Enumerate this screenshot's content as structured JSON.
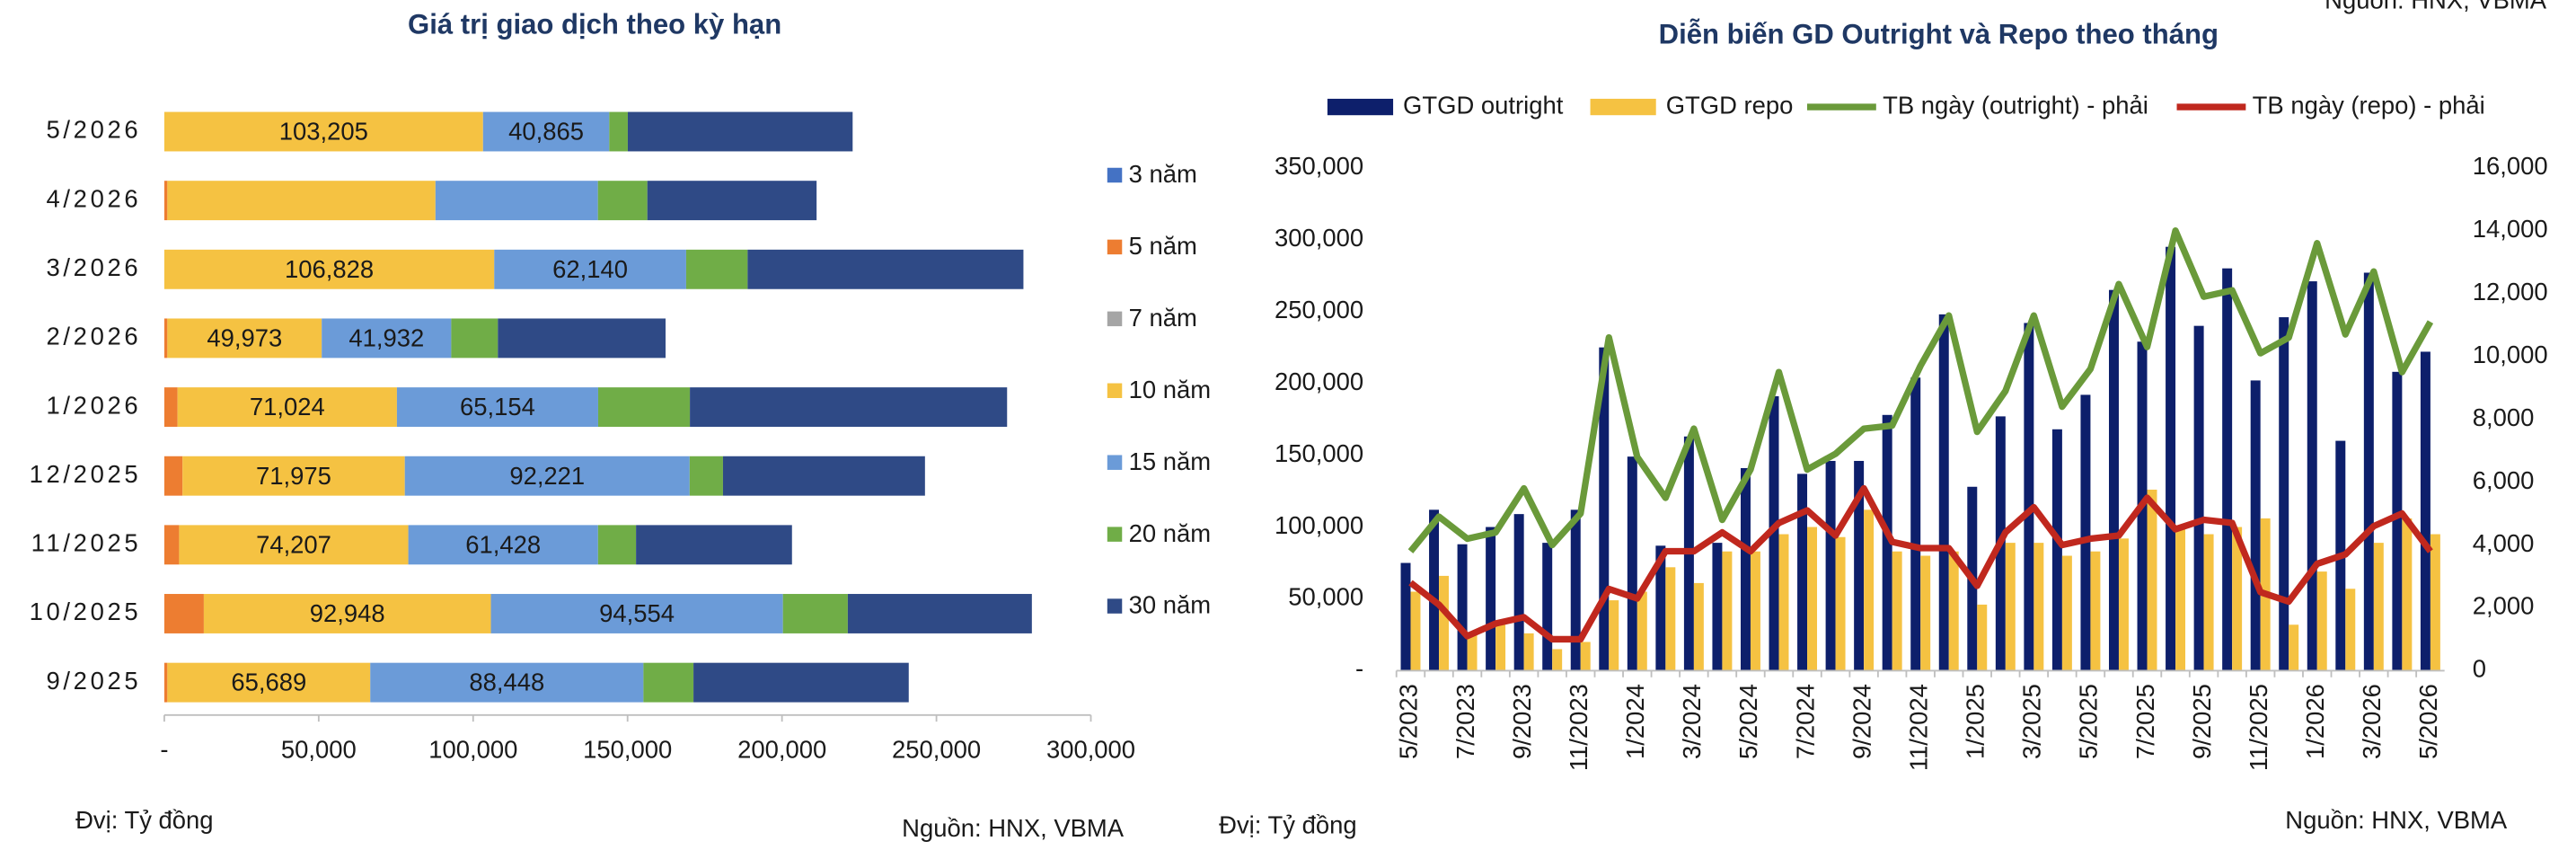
{
  "header_source": "Nguồn: HNX, VBMA",
  "chart_data": [
    {
      "type": "bar",
      "orientation": "horizontal",
      "stacked": true,
      "title": "Giá trị giao dịch theo kỳ hạn",
      "note": "Đvị: Tỷ đồng",
      "source": "Nguồn: HNX, VBMA",
      "legend": "right",
      "categories": [
        "5/2026",
        "4/2026",
        "3/2026",
        "2/2026",
        "1/2026",
        "12/2025",
        "11/2025",
        "10/2025",
        "9/2025"
      ],
      "xlim": [
        0,
        300000
      ],
      "xticks": [
        {
          "value": 0,
          "label": "-"
        },
        {
          "value": 50000,
          "label": "50,000"
        },
        {
          "value": 100000,
          "label": "100,000"
        },
        {
          "value": 150000,
          "label": "150,000"
        },
        {
          "value": 200000,
          "label": "200,000"
        },
        {
          "value": 250000,
          "label": "250,000"
        },
        {
          "value": 300000,
          "label": "300,000"
        }
      ],
      "series": [
        {
          "name": "3 năm",
          "color": "#4472c4",
          "values": [
            0,
            0,
            0,
            0,
            0,
            0,
            0,
            0,
            0
          ]
        },
        {
          "name": "5 năm",
          "color": "#ed7d31",
          "values": [
            0,
            1000,
            0,
            1000,
            4300,
            5900,
            4800,
            12800,
            1000
          ]
        },
        {
          "name": "7 năm",
          "color": "#a5a5a5",
          "values": [
            0,
            0,
            0,
            0,
            0,
            0,
            0,
            0,
            0
          ]
        },
        {
          "name": "10 năm",
          "color": "#f5c242",
          "values": [
            103205,
            86800,
            106828,
            49973,
            71024,
            71975,
            74207,
            92948,
            65689
          ],
          "value_labels": [
            "103,205",
            null,
            "106,828",
            "49,973",
            "71,024",
            "71,975",
            "74,207",
            "92,948",
            "65,689"
          ]
        },
        {
          "name": "15 năm",
          "color": "#6b9bd8",
          "values": [
            40865,
            52600,
            62140,
            41932,
            65154,
            92221,
            61428,
            94554,
            88448
          ],
          "value_labels": [
            "40,865",
            null,
            "62,140",
            "41,932",
            "65,154",
            "92,221",
            "61,428",
            "94,554",
            "88,448"
          ]
        },
        {
          "name": "20 năm",
          "color": "#70ad47",
          "values": [
            6000,
            16000,
            19900,
            15100,
            29700,
            10800,
            12300,
            21000,
            16200
          ]
        },
        {
          "name": "30 năm",
          "color": "#2f4a86",
          "values": [
            72800,
            54800,
            89300,
            54300,
            102700,
            65400,
            50500,
            59600,
            69700
          ]
        }
      ]
    },
    {
      "type": "combo",
      "title": "Diễn biến GD Outright và Repo theo tháng",
      "note": "Đvị: Tỷ đồng",
      "source": "Nguồn: HNX, VBMA",
      "legend": "top",
      "categories": [
        "5/2023",
        null,
        "7/2023",
        null,
        "9/2023",
        null,
        "11/2023",
        null,
        "1/2024",
        null,
        "3/2024",
        null,
        "5/2024",
        null,
        "7/2024",
        null,
        "9/2024",
        null,
        "11/2024",
        null,
        "1/2025",
        null,
        "3/2025",
        null,
        "5/2025",
        null,
        "7/2025",
        null,
        "9/2025",
        null,
        "11/2025",
        null,
        "1/2026",
        null,
        "3/2026",
        null,
        "5/2026"
      ],
      "ylim": [
        0,
        350000
      ],
      "yticks": [
        {
          "value": 0,
          "label": "-"
        },
        {
          "value": 50000,
          "label": "50,000"
        },
        {
          "value": 100000,
          "label": "100,000"
        },
        {
          "value": 150000,
          "label": "150,000"
        },
        {
          "value": 200000,
          "label": "200,000"
        },
        {
          "value": 250000,
          "label": "250,000"
        },
        {
          "value": 300000,
          "label": "300,000"
        },
        {
          "value": 350000,
          "label": "350,000"
        }
      ],
      "y2lim": [
        0,
        16000
      ],
      "y2ticks": [
        0,
        {
          "value": 2000,
          "label": "2,000"
        },
        {
          "value": 4000,
          "label": "4,000"
        },
        {
          "value": 6000,
          "label": "6,000"
        },
        {
          "value": 8000,
          "label": "8,000"
        },
        {
          "value": 10000,
          "label": "10,000"
        },
        {
          "value": 12000,
          "label": "12,000"
        },
        {
          "value": 14000,
          "label": "14,000"
        },
        {
          "value": 16000,
          "label": "16,000"
        }
      ],
      "series": [
        {
          "name": "GTGD outright",
          "type": "bar",
          "color": "#0d1f6b",
          "values": [
            75000,
            112000,
            88000,
            100000,
            109000,
            89000,
            112000,
            225000,
            149000,
            87000,
            163000,
            89000,
            141000,
            191000,
            137000,
            146000,
            146000,
            178000,
            204000,
            248000,
            128000,
            177000,
            242000,
            168000,
            192000,
            265000,
            229000,
            295000,
            240000,
            280000,
            202000,
            246000,
            271000,
            160000,
            277000,
            208000,
            222000
          ]
        },
        {
          "name": "GTGD repo",
          "type": "bar",
          "color": "#f5c242",
          "values": [
            55000,
            66000,
            26000,
            32000,
            26000,
            15000,
            20000,
            49000,
            55000,
            72000,
            61000,
            83000,
            83000,
            95000,
            100000,
            93000,
            112000,
            83000,
            80000,
            83000,
            46000,
            89000,
            89000,
            80000,
            83000,
            92000,
            126000,
            100000,
            95000,
            100000,
            106000,
            32000,
            69000,
            57000,
            89000,
            106000,
            95000
          ]
        },
        {
          "name": "TB ngày (outright) - phải",
          "type": "line",
          "axis": "y2",
          "color": "#6a9a3a",
          "values": [
            3800,
            4900,
            4200,
            4400,
            5800,
            4000,
            5000,
            10600,
            6800,
            5500,
            7700,
            4800,
            6400,
            9500,
            6400,
            6900,
            7700,
            7800,
            9700,
            11300,
            7600,
            8900,
            11300,
            8400,
            9600,
            12300,
            10300,
            14000,
            11900,
            12100,
            10100,
            10600,
            13600,
            10700,
            12700,
            9500,
            11100
          ]
        },
        {
          "name": "TB ngày (repo) - phải",
          "type": "line",
          "axis": "y2",
          "color": "#c0281e",
          "values": [
            2800,
            2100,
            1100,
            1500,
            1700,
            1000,
            1000,
            2600,
            2300,
            3800,
            3800,
            4400,
            3800,
            4700,
            5100,
            4300,
            5800,
            4100,
            3900,
            3900,
            2700,
            4400,
            5200,
            4000,
            4200,
            4300,
            5500,
            4500,
            4800,
            4700,
            2500,
            2200,
            3400,
            3700,
            4600,
            5000,
            3800
          ]
        }
      ]
    }
  ]
}
